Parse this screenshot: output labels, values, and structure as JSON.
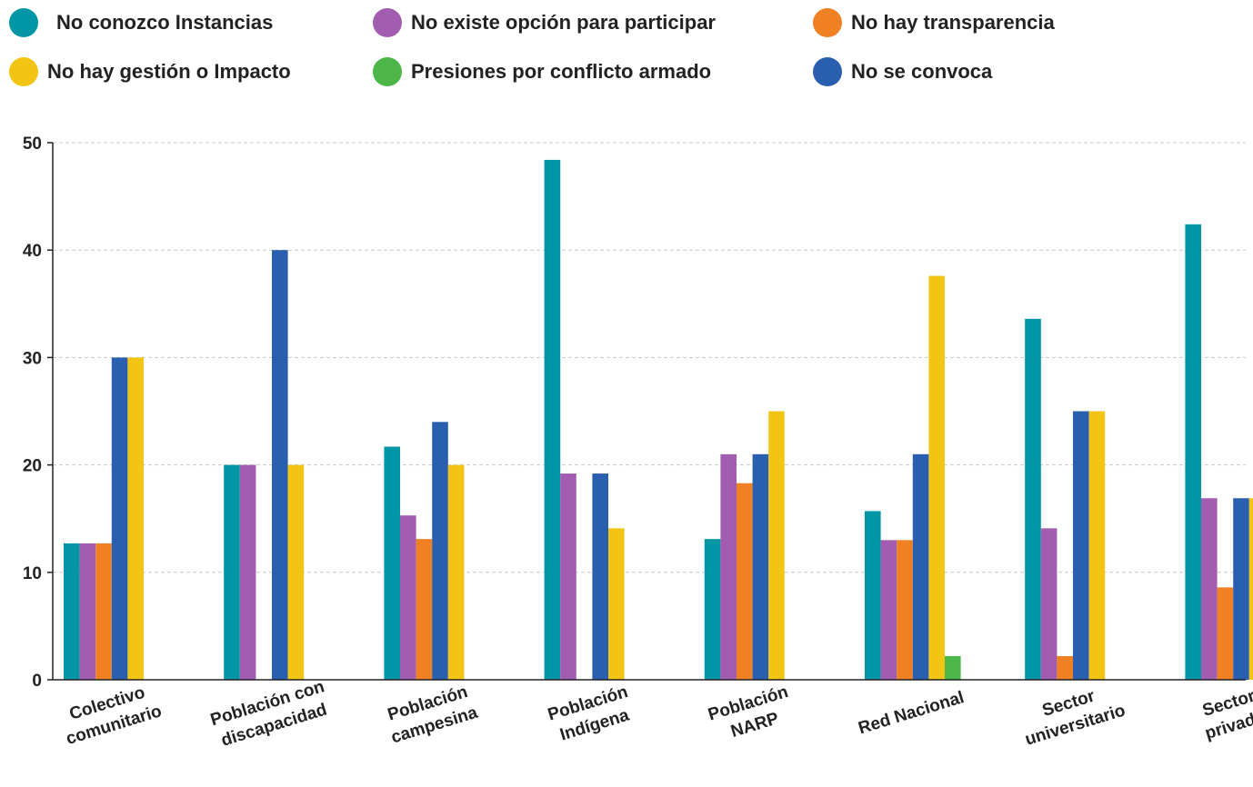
{
  "chart_data": {
    "type": "bar",
    "title": "",
    "xlabel": "",
    "ylabel": "",
    "ylim": [
      0,
      50
    ],
    "yticks": [
      0,
      10,
      20,
      30,
      40,
      50
    ],
    "grid": "horizontal dashed",
    "legend_position": "top",
    "categories": [
      [
        "Colectivo",
        "comunitario"
      ],
      [
        "Población con",
        "discapacidad"
      ],
      [
        "Población",
        "campesina"
      ],
      [
        "Población",
        "Indígena"
      ],
      [
        "Población",
        "NARP"
      ],
      [
        "Red Nacional"
      ],
      [
        "Sector",
        "universitario"
      ],
      [
        "Sector",
        "privado"
      ]
    ],
    "series": [
      {
        "name": "No conozco Instancias",
        "color": "#0096A6",
        "values": [
          12.7,
          20.0,
          21.7,
          48.4,
          13.1,
          15.7,
          33.6,
          42.4
        ]
      },
      {
        "name": "No existe opción para participar",
        "color": "#A35DB0",
        "values": [
          12.7,
          20.0,
          15.3,
          19.2,
          21.0,
          13.0,
          14.1,
          16.9
        ]
      },
      {
        "name": "No hay transparencia",
        "color": "#EF8124",
        "values": [
          12.7,
          0,
          13.1,
          0,
          18.3,
          13.0,
          2.2,
          8.6
        ]
      },
      {
        "name": "No se convoca",
        "color": "#2A5FAF",
        "values": [
          30.0,
          40.0,
          24.0,
          19.2,
          21.0,
          21.0,
          25.0,
          16.9
        ]
      },
      {
        "name": "No hay gestión o Impacto",
        "color": "#F2C414",
        "values": [
          30.0,
          20.0,
          20.0,
          14.1,
          25.0,
          37.6,
          25.0,
          16.9
        ]
      },
      {
        "name": "Presiones por conflicto armado",
        "color": "#4CB648",
        "values": [
          0,
          0,
          0,
          0,
          0,
          2.2,
          0,
          0
        ]
      }
    ]
  },
  "legend": {
    "items": [
      {
        "label": "No conozco Instancias",
        "color": "#0096A6"
      },
      {
        "label": "No existe opción para participar",
        "color": "#A35DB0"
      },
      {
        "label": "No hay transparencia",
        "color": "#EF8124"
      },
      {
        "label": "No hay gestión o Impacto",
        "color": "#F2C414"
      },
      {
        "label": "Presiones por conflicto armado",
        "color": "#4CB648"
      },
      {
        "label": "No se convoca",
        "color": "#2A5FAF"
      }
    ]
  }
}
